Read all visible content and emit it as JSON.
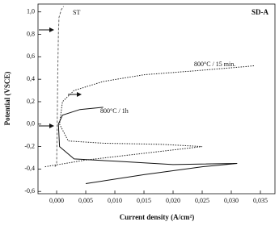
{
  "chart_data": {
    "type": "line",
    "title": "SD-A",
    "xlabel": "Current density (A/cm²)",
    "ylabel": "Potential (VSCE)",
    "xlim": [
      -0.0032,
      0.0375
    ],
    "ylim": [
      -0.62,
      1.07
    ],
    "xticks": [
      {
        "value": 0,
        "label": "0,000"
      },
      {
        "value": 0.005,
        "label": "0,005"
      },
      {
        "value": 0.01,
        "label": "0,010"
      },
      {
        "value": 0.015,
        "label": "0,015"
      },
      {
        "value": 0.02,
        "label": "0,020"
      },
      {
        "value": 0.025,
        "label": "0,025"
      },
      {
        "value": 0.03,
        "label": "0,030"
      },
      {
        "value": 0.035,
        "label": "0,035"
      }
    ],
    "yticks": [
      {
        "value": -0.6,
        "label": "-0,6"
      },
      {
        "value": -0.4,
        "label": "-0,4"
      },
      {
        "value": -0.2,
        "label": "-0,2"
      },
      {
        "value": 0,
        "label": "0,0"
      },
      {
        "value": 0.2,
        "label": "0,2"
      },
      {
        "value": 0.4,
        "label": "0,4"
      },
      {
        "value": 0.6,
        "label": "0,6"
      },
      {
        "value": 0.8,
        "label": "0,8"
      },
      {
        "value": 1.0,
        "label": "1,0"
      }
    ],
    "series": [
      {
        "name": "ST",
        "color": "#666666",
        "style": "dashed",
        "x": [
          -0.0003,
          0.0,
          0.0001,
          0.0002,
          0.0003,
          0.0004,
          0.0008,
          0.0012
        ],
        "values": [
          -0.38,
          -0.36,
          0.0,
          0.5,
          0.8,
          0.95,
          1.02,
          1.05
        ]
      },
      {
        "name": "800°C / 15 min.",
        "color": "#222222",
        "style": "dotted",
        "x": [
          -0.002,
          0.005,
          0.015,
          0.025,
          0.018,
          0.008,
          0.002,
          0.0005,
          0.001,
          0.003,
          0.008,
          0.015,
          0.025,
          0.034
        ],
        "values": [
          -0.38,
          -0.32,
          -0.26,
          -0.2,
          -0.18,
          -0.17,
          -0.15,
          0.0,
          0.2,
          0.3,
          0.38,
          0.44,
          0.48,
          0.52
        ]
      },
      {
        "name": "800°C / 1h",
        "color": "#111111",
        "style": "solid",
        "x": [
          0.005,
          0.015,
          0.025,
          0.031,
          0.02,
          0.01,
          0.003,
          0.0005,
          0.0003,
          0.001,
          0.004,
          0.008
        ],
        "values": [
          -0.53,
          -0.45,
          -0.38,
          -0.35,
          -0.36,
          -0.33,
          -0.31,
          -0.2,
          0.0,
          0.08,
          0.13,
          0.15
        ]
      }
    ]
  }
}
